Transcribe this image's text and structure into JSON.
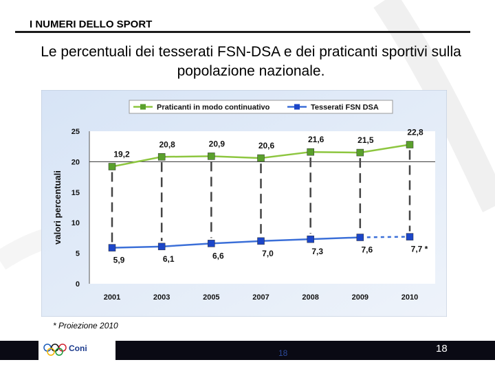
{
  "header": {
    "title": "I NUMERI DELLO SPORT"
  },
  "subtitle": "Le percentuali dei tesserati FSN-DSA e dei praticanti sportivi sulla popolazione nazionale.",
  "chart_data": {
    "type": "line",
    "categories": [
      "2001",
      "2003",
      "2005",
      "2007",
      "2008",
      "2009",
      "2010"
    ],
    "series": [
      {
        "name": "Praticanti in modo continuativo",
        "color": "#8dc63f",
        "marker_color": "#5aa02c",
        "values": [
          19.2,
          20.8,
          20.9,
          20.6,
          21.6,
          21.5,
          22.8
        ],
        "labels": [
          "19,2",
          "20,8",
          "20,9",
          "20,6",
          "21,6",
          "21,5",
          "22,8"
        ]
      },
      {
        "name": "Tesserati FSN DSA",
        "color": "#3b6fd8",
        "marker_color": "#1c46c8",
        "values": [
          5.9,
          6.1,
          6.6,
          7.0,
          7.3,
          7.6,
          7.7
        ],
        "labels": [
          "5,9",
          "6,1",
          "6,6",
          "7,0",
          "7,3",
          "7,6",
          "7,7 *"
        ]
      }
    ],
    "ylabel": "valori percentuali",
    "xlabel": "",
    "ylim": [
      0,
      25
    ],
    "yticks": [
      0,
      5,
      10,
      15,
      20,
      25
    ],
    "legend_position": "top-center",
    "grid": false
  },
  "footnote": "* Proiezione 2010",
  "footer": {
    "logo_text": "Coni",
    "page_small": "18",
    "page_big": "18"
  }
}
